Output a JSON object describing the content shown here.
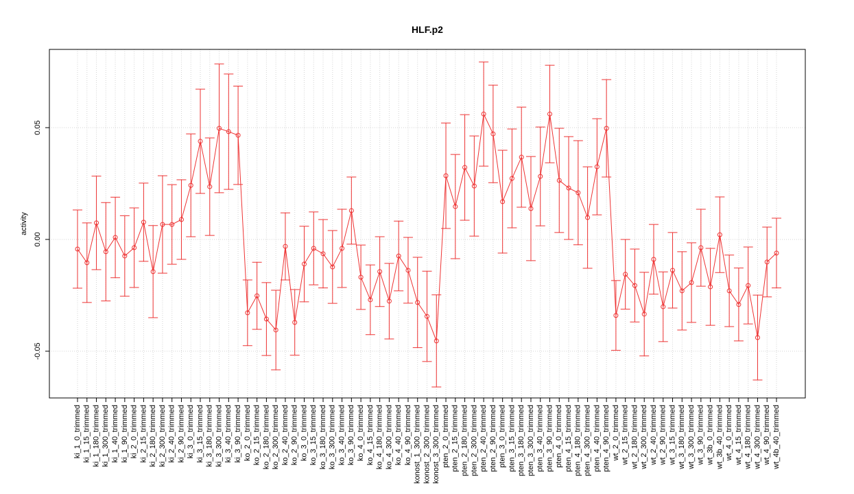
{
  "chart_data": {
    "type": "line",
    "title": "HLF.p2",
    "y_label": "activity",
    "categories": [
      "ki_1_0_trimmed",
      "ki_1_15_trimmed",
      "ki_1_180_trimmed",
      "ki_1_300_trimmed",
      "ki_1_40_trimmed",
      "ki_1_90_trimmed",
      "ki_2_0_trimmed",
      "ki_2_15_trimmed",
      "ki_2_180_trimmed",
      "ki_2_300_trimmed",
      "ki_2_40_trimmed",
      "ki_2_90_trimmed",
      "ki_3_0_trimmed",
      "ki_3_15_trimmed",
      "ki_3_180_trimmed",
      "ki_3_300_trimmed",
      "ki_3_40_trimmed",
      "ki_3_90_trimmed",
      "ko_2_0_trimmed",
      "ko_2_15_trimmed",
      "ko_2_180_trimmed",
      "ko_2_300_trimmed",
      "ko_2_40_trimmed",
      "ko_2_90_trimmed",
      "ko_3_0_trimmed",
      "ko_3_15_trimmed",
      "ko_3_180_trimmed",
      "ko_3_300_trimmed",
      "ko_3_40_trimmed",
      "ko_3_90_trimmed",
      "ko_4_0_trimmed",
      "ko_4_15_trimmed",
      "ko_4_180_trimmed",
      "ko_4_300_trimmed",
      "ko_4_40_trimmed",
      "ko_4_90_trimmed",
      "konost_1_300_trimmed",
      "konost_2_300_trimmed",
      "konost_3_300_trimmed",
      "pten_2_0_trimmed",
      "pten_2_15_trimmed",
      "pten_2_180_trimmed",
      "pten_2_300_trimmed",
      "pten_2_40_trimmed",
      "pten_2_90_trimmed",
      "pten_3_0_trimmed",
      "pten_3_15_trimmed",
      "pten_3_180_trimmed",
      "pten_3_300_trimmed",
      "pten_3_40_trimmed",
      "pten_3_90_trimmed",
      "pten_4_0_trimmed",
      "pten_4_15_trimmed",
      "pten_4_180_trimmed",
      "pten_4_300_trimmed",
      "pten_4_40_trimmed",
      "pten_4_90_trimmed",
      "wt_2_0_trimmed",
      "wt_2_15_trimmed",
      "wt_2_180_trimmed",
      "wt_2_300_trimmed",
      "wt_2_40_trimmed",
      "wt_2_90_trimmed",
      "wt_3_15_trimmed",
      "wt_3_180_trimmed",
      "wt_3_300_trimmed",
      "wt_3_90_trimmed",
      "wt_3b_0_trimmed",
      "wt_3b_40_trimmed",
      "wt_4_0_trimmed",
      "wt_4_15_trimmed",
      "wt_4_180_trimmed",
      "wt_4_300_trimmed",
      "wt_4_90_trimmed",
      "wt_4b_40_trimmed"
    ],
    "values": [
      -0.0043,
      -0.0104,
      0.0074,
      -0.0055,
      0.0009,
      -0.0074,
      -0.0037,
      0.0077,
      -0.0144,
      0.0067,
      0.0067,
      0.0089,
      0.0242,
      0.0439,
      0.0236,
      0.0497,
      0.0482,
      0.0466,
      -0.0328,
      -0.0252,
      -0.0356,
      -0.0405,
      -0.0031,
      -0.0371,
      -0.011,
      -0.004,
      -0.0064,
      -0.0123,
      -0.004,
      0.0129,
      -0.0169,
      -0.027,
      -0.0144,
      -0.0276,
      -0.0074,
      -0.0138,
      -0.0282,
      -0.0344,
      -0.0454,
      0.0285,
      0.0147,
      0.0322,
      0.0239,
      0.0561,
      0.0472,
      0.0169,
      0.0273,
      0.0368,
      0.0138,
      0.0282,
      0.0561,
      0.0264,
      0.023,
      0.0209,
      0.0098,
      0.0325,
      0.0497,
      -0.034,
      -0.0156,
      -0.0206,
      -0.0334,
      -0.0089,
      -0.0301,
      -0.0138,
      -0.023,
      -0.0193,
      -0.0037,
      -0.0212,
      0.0021,
      -0.023,
      -0.0291,
      -0.0206,
      -0.0439,
      -0.0101,
      -0.0061
    ],
    "errors": [
      0.0175,
      0.0178,
      0.0209,
      0.022,
      0.018,
      0.018,
      0.0178,
      0.0175,
      0.0206,
      0.0218,
      0.0178,
      0.0178,
      0.023,
      0.0233,
      0.0218,
      0.0288,
      0.0258,
      0.022,
      0.0147,
      0.015,
      0.0163,
      0.0178,
      0.015,
      0.0147,
      0.0169,
      0.0163,
      0.0153,
      0.0163,
      0.0175,
      0.015,
      0.0144,
      0.0156,
      0.0156,
      0.0169,
      0.0156,
      0.0147,
      0.0202,
      0.0202,
      0.0206,
      0.0236,
      0.0233,
      0.0236,
      0.0224,
      0.0233,
      0.0218,
      0.023,
      0.0221,
      0.0224,
      0.0233,
      0.0221,
      0.0218,
      0.0233,
      0.023,
      0.0233,
      0.0227,
      0.0215,
      0.0218,
      0.0156,
      0.0156,
      0.0163,
      0.0187,
      0.0156,
      0.0156,
      0.0169,
      0.0175,
      0.0178,
      0.0172,
      0.0172,
      0.0169,
      0.016,
      0.0163,
      0.0172,
      0.019,
      0.0156,
      0.0156
    ],
    "color": "#ee3333",
    "ylim": [
      -0.0709,
      0.085
    ],
    "yticks": [
      -0.05,
      {
        "value": 0,
        "label": "0.00"
      },
      0.05
    ],
    "grid": true
  }
}
